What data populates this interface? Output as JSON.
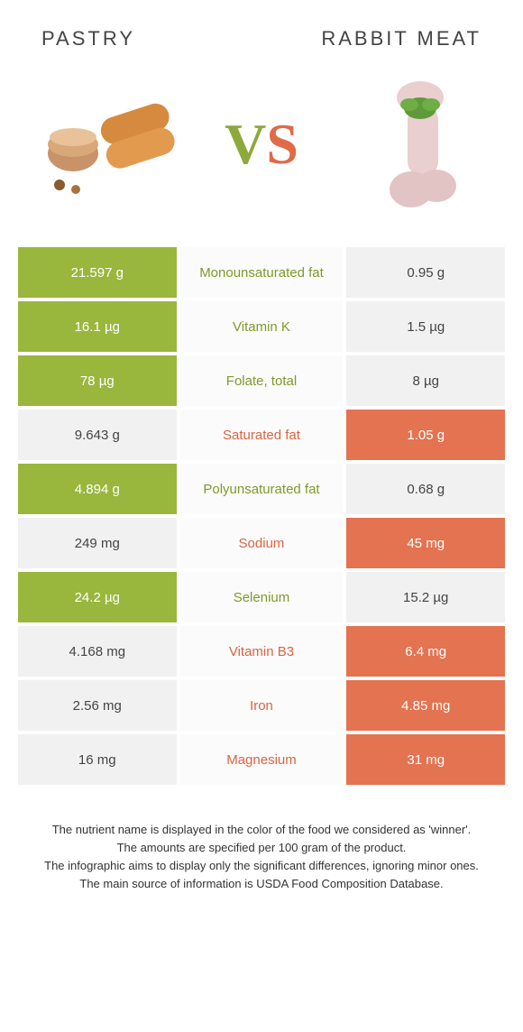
{
  "header": {
    "left_title": "Pastry",
    "right_title": "Rabbit meat",
    "vs_v": "V",
    "vs_s": "S"
  },
  "colors": {
    "green": "#99b73d",
    "orange": "#e37351",
    "grey": "#f1f1f1",
    "txt_green": "#7e9a2a",
    "txt_orange": "#db6441"
  },
  "table": {
    "type": "comparison-table",
    "rows": [
      {
        "left": "21.597 g",
        "label": "Monounsaturated fat",
        "right": "0.95 g",
        "winner": "left"
      },
      {
        "left": "16.1 µg",
        "label": "Vitamin K",
        "right": "1.5 µg",
        "winner": "left"
      },
      {
        "left": "78 µg",
        "label": "Folate, total",
        "right": "8 µg",
        "winner": "left"
      },
      {
        "left": "9.643 g",
        "label": "Saturated fat",
        "right": "1.05 g",
        "winner": "right"
      },
      {
        "left": "4.894 g",
        "label": "Polyunsaturated fat",
        "right": "0.68 g",
        "winner": "left"
      },
      {
        "left": "249 mg",
        "label": "Sodium",
        "right": "45 mg",
        "winner": "right"
      },
      {
        "left": "24.2 µg",
        "label": "Selenium",
        "right": "15.2 µg",
        "winner": "left"
      },
      {
        "left": "4.168 mg",
        "label": "Vitamin B3",
        "right": "6.4 mg",
        "winner": "right"
      },
      {
        "left": "2.56 mg",
        "label": "Iron",
        "right": "4.85 mg",
        "winner": "right"
      },
      {
        "left": "16 mg",
        "label": "Magnesium",
        "right": "31 mg",
        "winner": "right"
      }
    ]
  },
  "notes": {
    "line1": "The nutrient name is displayed in the color of the food we considered as 'winner'.",
    "line2": "The amounts are specified per 100 gram of the product.",
    "line3": "The infographic aims to display only the significant differences, ignoring minor ones.",
    "line4": "The main source of information is USDA Food Composition Database."
  }
}
